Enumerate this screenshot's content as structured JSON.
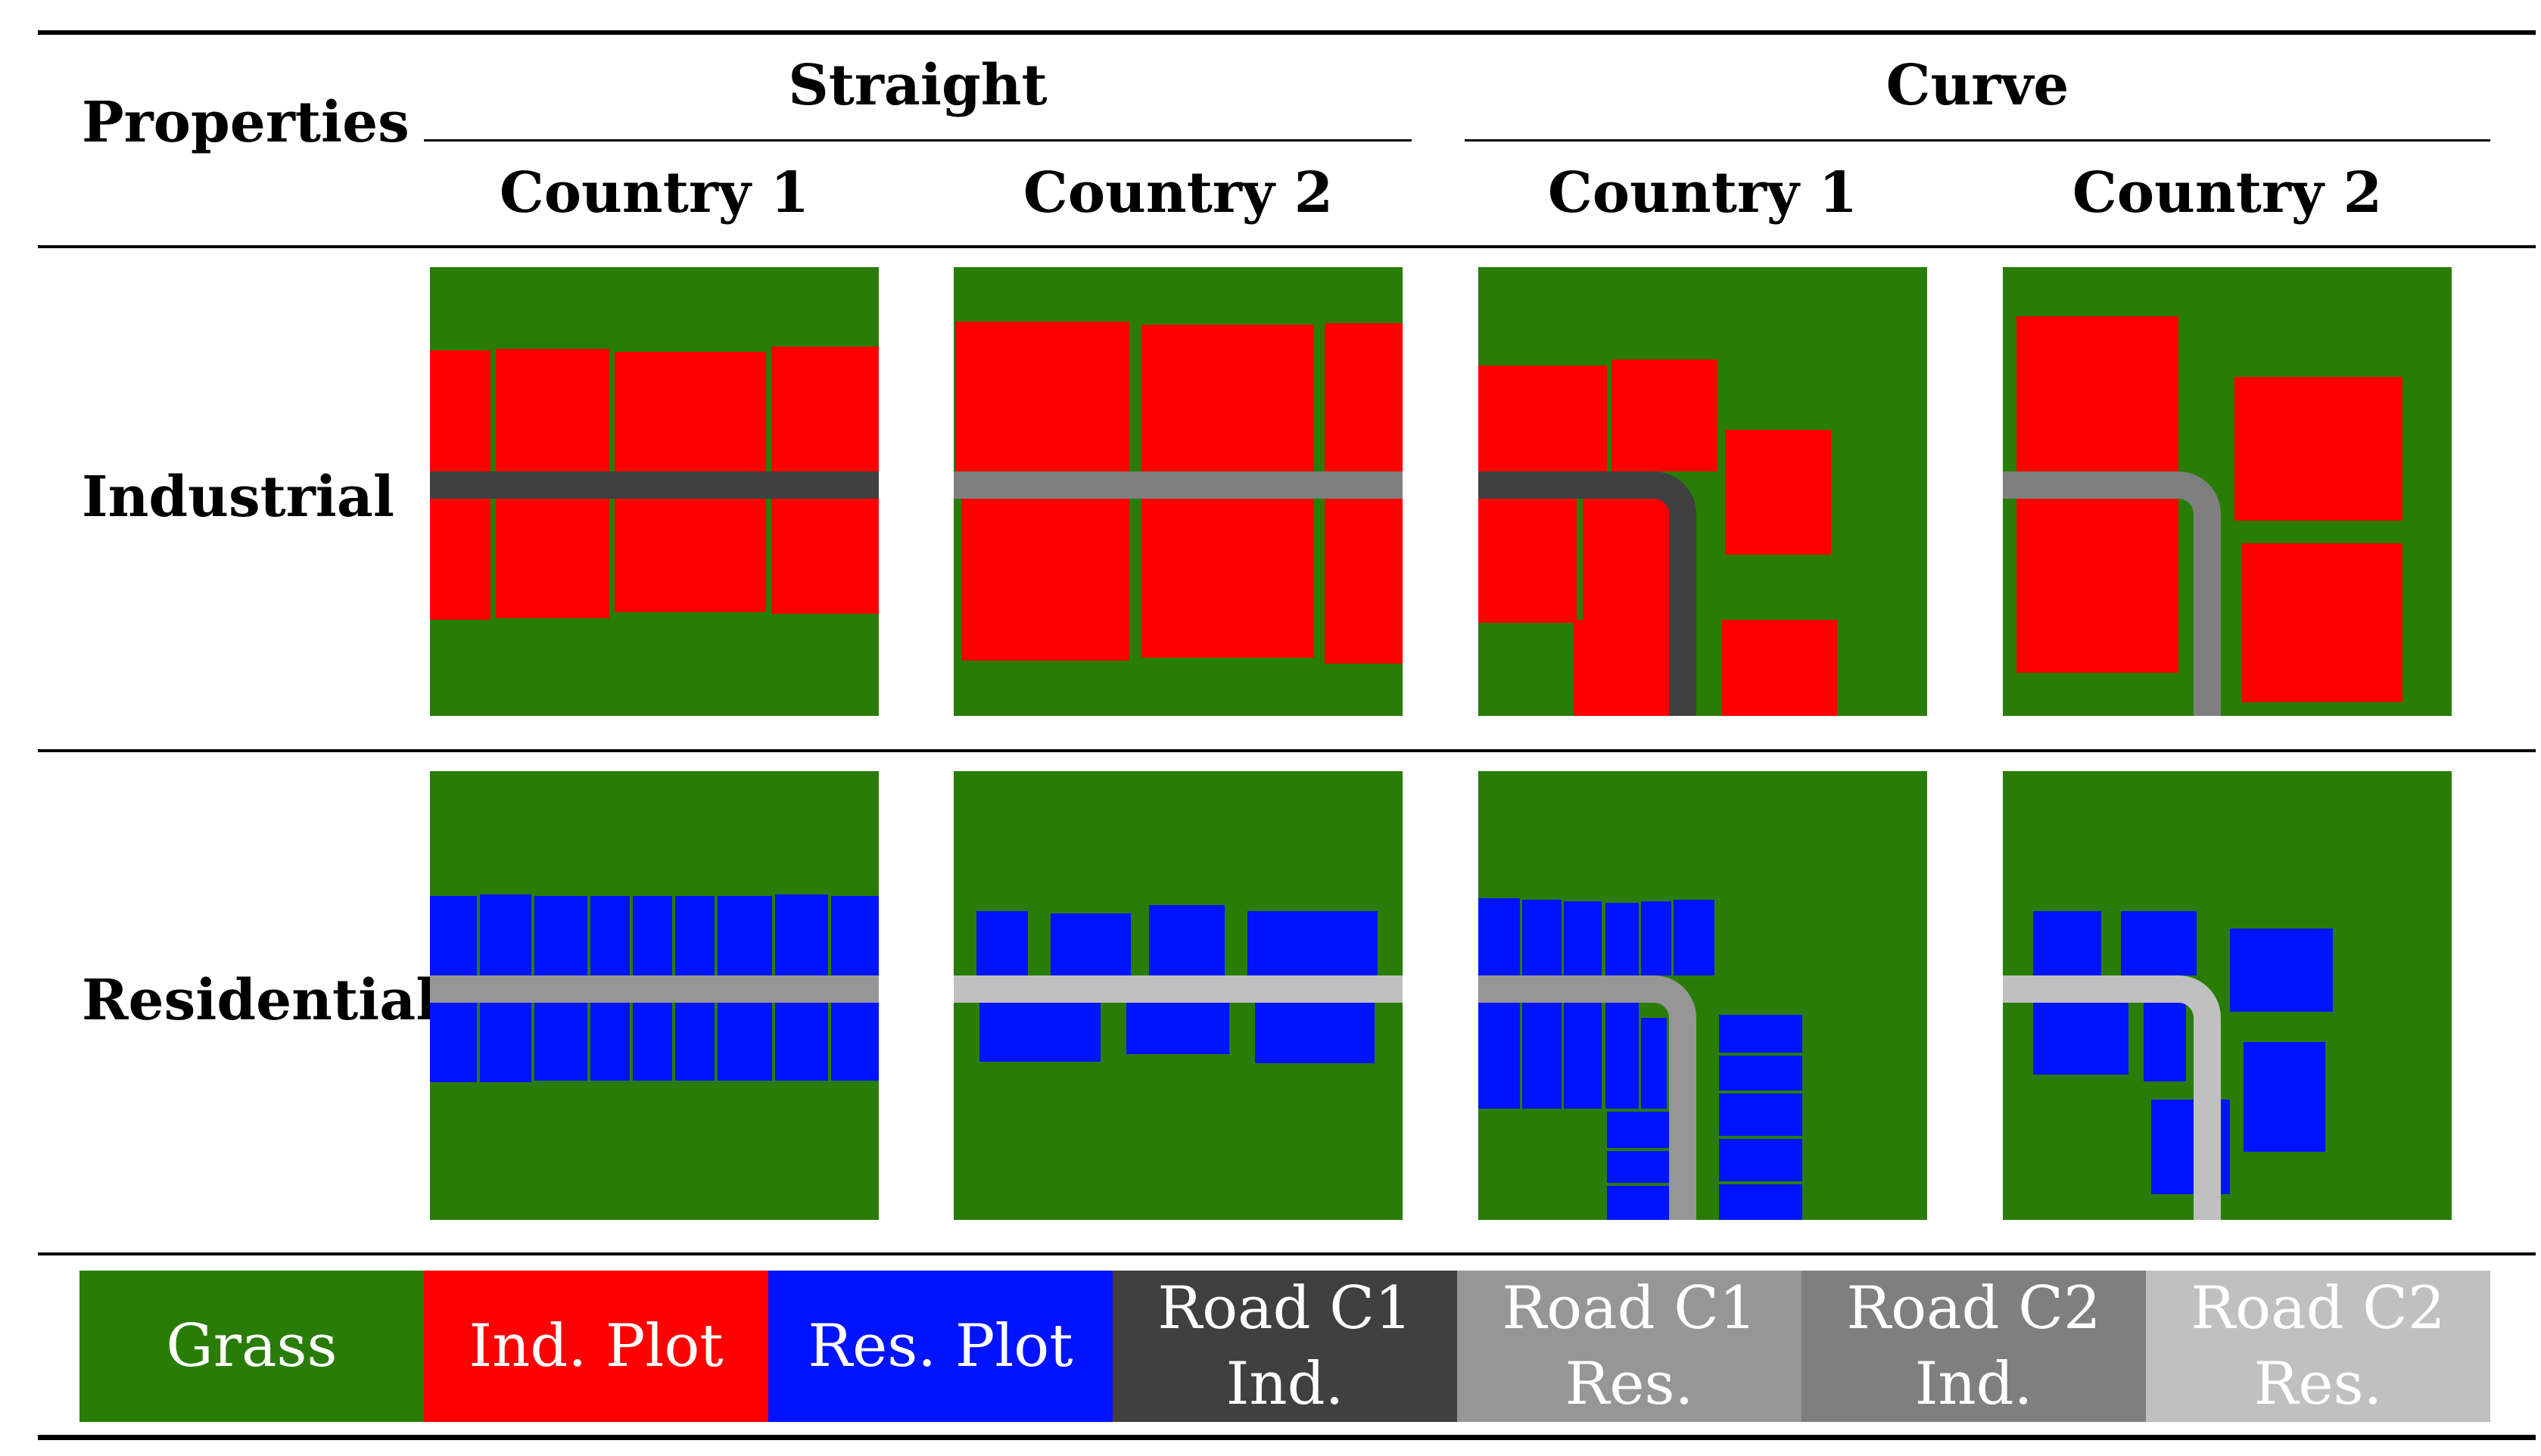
{
  "header": {
    "properties_label": "Properties",
    "groups": [
      {
        "label": "Straight",
        "countries": [
          "Country 1",
          "Country 2"
        ]
      },
      {
        "label": "Curve",
        "countries": [
          "Country 1",
          "Country 2"
        ]
      }
    ]
  },
  "rows": [
    {
      "label": "Industrial"
    },
    {
      "label": "Residential"
    }
  ],
  "colors": {
    "grass": "#297d07",
    "ind_plot": "#ff0000",
    "res_plot": "#0013ff",
    "road_c1_ind": "#404040",
    "road_c1_res": "#969696",
    "road_c2_ind": "#7f7f7f",
    "road_c2_res": "#c0c0c0"
  },
  "legend": [
    {
      "label": "Grass",
      "color": "#297d07"
    },
    {
      "label": "Ind. Plot",
      "color": "#ff0000"
    },
    {
      "label": "Res. Plot",
      "color": "#0013ff"
    },
    {
      "label": "Road C1\nInd.",
      "color": "#404040"
    },
    {
      "label": "Road C1\nRes.",
      "color": "#969696"
    },
    {
      "label": "Road C2\nInd.",
      "color": "#7f7f7f"
    },
    {
      "label": "Road C2\nRes.",
      "color": "#c0c0c0"
    }
  ]
}
